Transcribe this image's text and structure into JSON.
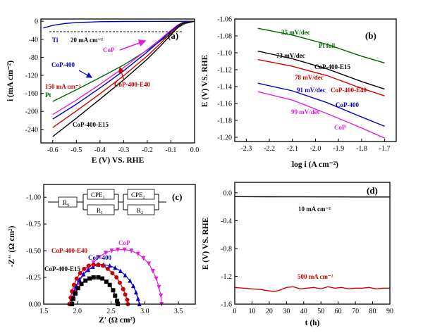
{
  "chart_data": [
    {
      "panel": "a",
      "type": "line",
      "panel_label": "(a)",
      "xlabel": "E (V) VS. RHE",
      "ylabel": "i (mA cm⁻²)",
      "xlim": [
        -0.65,
        0.0
      ],
      "ylim": [
        -270,
        5
      ],
      "xticks": [
        -0.6,
        -0.5,
        -0.4,
        -0.3,
        -0.2,
        -0.1,
        0.0
      ],
      "xtick_labels": [
        "-0.6",
        "-0.5",
        "-0.4",
        "-0.3",
        "-0.2",
        "-0.1",
        "0.0"
      ],
      "yticks": [
        0,
        -40,
        -80,
        -120,
        -160,
        -200,
        -240
      ],
      "ytick_labels": [
        "0",
        "-40",
        "-80",
        "-120",
        "-160",
        "-200",
        "-240"
      ],
      "reference_line": {
        "y": -20,
        "label": "20 mA cm⁻²"
      },
      "annotations": [
        {
          "text": "150 mA cm⁻²",
          "color": "#cc0000"
        },
        {
          "text": "CoP",
          "color": "#e020e0"
        },
        {
          "text": "CoP-400",
          "color": "#0000cc"
        },
        {
          "text": "CoP-400-E40",
          "color": "#cc0000"
        },
        {
          "text": "CoP-400-E15",
          "color": "#000000"
        },
        {
          "text": "Ti",
          "color": "#0000aa"
        },
        {
          "text": "Pt",
          "color": "#006600"
        }
      ],
      "series": [
        {
          "name": "Ti",
          "color": "#0000aa",
          "x": [
            -0.64,
            -0.6,
            -0.55,
            -0.5,
            -0.45,
            -0.4,
            -0.3,
            -0.2,
            -0.1,
            0.0
          ],
          "y": [
            -15,
            -9,
            -5,
            -3,
            -2,
            -1,
            -0.5,
            -0.3,
            -0.1,
            0
          ]
        },
        {
          "name": "Pt",
          "color": "#006600",
          "x": [
            -0.6,
            -0.5,
            -0.4,
            -0.3,
            -0.2,
            -0.15,
            -0.1,
            -0.07,
            -0.04,
            0.0
          ],
          "y": [
            -178,
            -152,
            -125,
            -97,
            -64,
            -46,
            -27,
            -14,
            -5,
            0
          ]
        },
        {
          "name": "CoP",
          "color": "#e020e0",
          "x": [
            -0.6,
            -0.5,
            -0.4,
            -0.3,
            -0.2,
            -0.15,
            -0.1,
            -0.07,
            -0.05,
            0.0
          ],
          "y": [
            -207,
            -175,
            -140,
            -103,
            -63,
            -42,
            -20,
            -8,
            -3,
            0
          ]
        },
        {
          "name": "CoP-400",
          "color": "#0000cc",
          "x": [
            -0.6,
            -0.5,
            -0.4,
            -0.3,
            -0.2,
            -0.15,
            -0.1,
            -0.07,
            -0.05,
            0.0
          ],
          "y": [
            -217,
            -184,
            -148,
            -110,
            -68,
            -45,
            -22,
            -9,
            -3,
            0
          ]
        },
        {
          "name": "CoP-400-E40",
          "color": "#cc0000",
          "x": [
            -0.6,
            -0.5,
            -0.4,
            -0.3,
            -0.2,
            -0.15,
            -0.1,
            -0.07,
            -0.05,
            0.0
          ],
          "y": [
            -236,
            -199,
            -161,
            -121,
            -77,
            -52,
            -26,
            -11,
            -4,
            0
          ]
        },
        {
          "name": "CoP-400-E15",
          "color": "#000000",
          "x": [
            -0.6,
            -0.5,
            -0.4,
            -0.3,
            -0.2,
            -0.15,
            -0.1,
            -0.07,
            -0.05,
            0.0
          ],
          "y": [
            -256,
            -215,
            -173,
            -130,
            -84,
            -58,
            -30,
            -13,
            -5,
            0
          ]
        }
      ]
    },
    {
      "panel": "b",
      "type": "line",
      "panel_label": "(b)",
      "xlabel": "log i (A cm⁻²)",
      "ylabel": "E (V) VS. RHE",
      "xlim": [
        -2.35,
        -1.65
      ],
      "ylim": [
        -1.205,
        -1.06
      ],
      "xticks": [
        -2.3,
        -2.2,
        -2.1,
        -2.0,
        -1.9,
        -1.8,
        -1.7
      ],
      "xtick_labels": [
        "-2.3",
        "-2.2",
        "-2.1",
        "-2.0",
        "-1.9",
        "-1.8",
        "-1.7"
      ],
      "yticks": [
        -1.06,
        -1.08,
        -1.1,
        -1.12,
        -1.14,
        -1.16,
        -1.18,
        -1.2
      ],
      "ytick_labels": [
        "-1.06",
        "-1.08",
        "-1.10",
        "-1.12",
        "-1.14",
        "-1.16",
        "-1.18",
        "-1.20"
      ],
      "annotations": [
        {
          "text": "35 mV/dec",
          "color": "#006600"
        },
        {
          "text": "Pt foil",
          "color": "#006600"
        },
        {
          "text": "73 mV/dec",
          "color": "#000000"
        },
        {
          "text": "CoP-400-E15",
          "color": "#000000"
        },
        {
          "text": "78 mV/dec",
          "color": "#cc0000"
        },
        {
          "text": "CoP-400-E40",
          "color": "#cc0000"
        },
        {
          "text": "91 mV/dec",
          "color": "#0000cc"
        },
        {
          "text": "CoP-400",
          "color": "#0000cc"
        },
        {
          "text": "99 mV/dec",
          "color": "#e020e0"
        },
        {
          "text": "CoP",
          "color": "#e020e0"
        }
      ],
      "series": [
        {
          "name": "Pt foil",
          "color": "#006600",
          "x": [
            -2.25,
            -2.1,
            -1.95,
            -1.8,
            -1.7
          ],
          "y": [
            -1.071,
            -1.079,
            -1.09,
            -1.104,
            -1.112
          ]
        },
        {
          "name": "CoP-400-E15",
          "color": "#000000",
          "x": [
            -2.25,
            -2.1,
            -1.95,
            -1.8,
            -1.7
          ],
          "y": [
            -1.098,
            -1.107,
            -1.119,
            -1.134,
            -1.143
          ]
        },
        {
          "name": "CoP-400-E40",
          "color": "#cc0000",
          "x": [
            -2.25,
            -2.1,
            -1.95,
            -1.8,
            -1.7
          ],
          "y": [
            -1.108,
            -1.116,
            -1.127,
            -1.142,
            -1.151
          ]
        },
        {
          "name": "CoP-400",
          "color": "#0000cc",
          "x": [
            -2.25,
            -2.1,
            -1.95,
            -1.8,
            -1.7
          ],
          "y": [
            -1.136,
            -1.145,
            -1.159,
            -1.176,
            -1.187
          ]
        },
        {
          "name": "CoP",
          "color": "#e020e0",
          "x": [
            -2.25,
            -2.1,
            -1.95,
            -1.8,
            -1.7
          ],
          "y": [
            -1.146,
            -1.156,
            -1.172,
            -1.189,
            -1.201
          ]
        }
      ]
    },
    {
      "panel": "c",
      "type": "scatter",
      "panel_label": "(c)",
      "xlabel": "Z′ (Ω cm²)",
      "ylabel": "-Z″ (Ω cm²)",
      "xlim": [
        1.5,
        3.75
      ],
      "ylim": [
        0,
        -1.12
      ],
      "xticks": [
        1.5,
        2.0,
        2.5,
        3.0,
        3.5
      ],
      "xtick_labels": [
        "1.5",
        "2.0",
        "2.5",
        "3.0",
        "3.5"
      ],
      "yticks": [
        0,
        -0.25,
        -0.5,
        -0.75,
        -1.0
      ],
      "ytick_labels": [
        "0.00",
        "-0.25",
        "-0.50",
        "-0.75",
        "-1.00"
      ],
      "circuit": {
        "rs": "R",
        "rs_sub": "S",
        "cpe1": "CPE",
        "cpe1_sub": "1",
        "r1": "R",
        "r1_sub": "1",
        "cpe2": "CPE",
        "cpe2_sub": "2",
        "r2": "R",
        "r2_sub": "2"
      },
      "series": [
        {
          "name": "CoP",
          "color": "#e020e0",
          "marker": "triangle-down",
          "x": [
            1.9,
            1.93,
            1.97,
            2.02,
            2.08,
            2.16,
            2.24,
            2.32,
            2.42,
            2.51,
            2.6,
            2.7,
            2.8,
            2.9,
            2.98,
            3.06,
            3.12,
            3.17,
            3.21,
            3.24,
            3.25
          ],
          "y": [
            0.0,
            -0.06,
            -0.13,
            -0.2,
            -0.27,
            -0.34,
            -0.39,
            -0.44,
            -0.48,
            -0.5,
            -0.51,
            -0.51,
            -0.5,
            -0.47,
            -0.43,
            -0.38,
            -0.31,
            -0.24,
            -0.16,
            -0.08,
            0.0
          ]
        },
        {
          "name": "CoP-400",
          "color": "#0000cc",
          "marker": "triangle-up",
          "x": [
            1.9,
            1.92,
            1.95,
            1.98,
            2.03,
            2.09,
            2.16,
            2.23,
            2.31,
            2.39,
            2.48,
            2.56,
            2.64,
            2.71,
            2.78,
            2.83,
            2.87,
            2.9,
            2.92
          ],
          "y": [
            0.0,
            -0.05,
            -0.11,
            -0.17,
            -0.23,
            -0.28,
            -0.32,
            -0.35,
            -0.37,
            -0.37,
            -0.36,
            -0.34,
            -0.31,
            -0.27,
            -0.22,
            -0.17,
            -0.11,
            -0.05,
            0.0
          ]
        },
        {
          "name": "CoP-400-E40",
          "color": "#cc0000",
          "marker": "circle",
          "x": [
            1.88,
            1.9,
            1.92,
            1.95,
            1.99,
            2.04,
            2.1,
            2.17,
            2.24,
            2.31,
            2.38,
            2.45,
            2.52,
            2.58,
            2.63,
            2.68,
            2.71,
            2.74,
            2.75
          ],
          "y": [
            0.0,
            -0.06,
            -0.12,
            -0.18,
            -0.24,
            -0.29,
            -0.33,
            -0.36,
            -0.37,
            -0.37,
            -0.36,
            -0.33,
            -0.29,
            -0.25,
            -0.2,
            -0.14,
            -0.09,
            -0.04,
            0.0
          ]
        },
        {
          "name": "CoP-400-E15",
          "color": "#000000",
          "marker": "square",
          "x": [
            1.92,
            1.94,
            1.97,
            2.01,
            2.06,
            2.12,
            2.18,
            2.24,
            2.31,
            2.37,
            2.43,
            2.48,
            2.53,
            2.56,
            2.59,
            2.6
          ],
          "y": [
            0.0,
            -0.05,
            -0.1,
            -0.15,
            -0.19,
            -0.22,
            -0.24,
            -0.25,
            -0.25,
            -0.24,
            -0.21,
            -0.18,
            -0.13,
            -0.08,
            -0.03,
            0.0
          ]
        }
      ]
    },
    {
      "panel": "d",
      "type": "line",
      "panel_label": "(d)",
      "xlabel": "t (h)",
      "ylabel": "E (V) VS. RHE",
      "xlim": [
        0,
        90
      ],
      "ylim": [
        -1.6,
        0.15
      ],
      "xticks": [
        0,
        10,
        20,
        30,
        40,
        50,
        60,
        70,
        80,
        90
      ],
      "xtick_labels": [
        "0",
        "10",
        "20",
        "30",
        "40",
        "50",
        "60",
        "70",
        "80",
        "90"
      ],
      "yticks": [
        0.0,
        -0.4,
        -0.8,
        -1.2,
        -1.6
      ],
      "ytick_labels": [
        "0.0",
        "-0.4",
        "-0.8",
        "-1.2",
        "-1.6"
      ],
      "annotations": [
        {
          "text": "10 mA cm⁻²",
          "color": "#000000"
        },
        {
          "text": "500 mA cm⁻²",
          "color": "#cc0000"
        }
      ],
      "series": [
        {
          "name": "10 mA cm⁻²",
          "color": "#000000",
          "x": [
            0,
            10,
            20,
            30,
            40,
            50,
            60,
            70,
            80,
            90
          ],
          "y": [
            -0.055,
            -0.056,
            -0.057,
            -0.058,
            -0.058,
            -0.059,
            -0.059,
            -0.06,
            -0.06,
            -0.06
          ]
        },
        {
          "name": "500 mA cm⁻²",
          "color": "#cc0000",
          "x": [
            0,
            5,
            10,
            15,
            20,
            23,
            26,
            30,
            34,
            38,
            42,
            46,
            50,
            54,
            58,
            62,
            66,
            70,
            74,
            78,
            82,
            86,
            90
          ],
          "y": [
            -1.36,
            -1.37,
            -1.38,
            -1.39,
            -1.41,
            -1.42,
            -1.4,
            -1.36,
            -1.35,
            -1.38,
            -1.37,
            -1.36,
            -1.38,
            -1.35,
            -1.37,
            -1.36,
            -1.38,
            -1.37,
            -1.37,
            -1.36,
            -1.38,
            -1.37,
            -1.37
          ]
        }
      ]
    }
  ]
}
